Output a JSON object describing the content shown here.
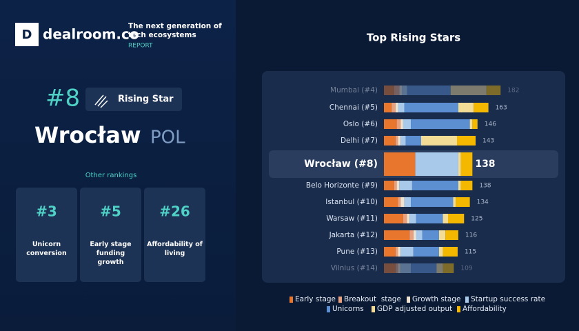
{
  "header": {
    "logo": "dealroom.co",
    "tagline": "The next generation of tech ecosystems",
    "report": "REPORT"
  },
  "profile": {
    "rank": "#8",
    "badge": "Rising Star",
    "city": "Wrocław",
    "country": "POL",
    "other_title": "Other rankings",
    "rankings": [
      {
        "rank": "#3",
        "label": "Unicorn conversion"
      },
      {
        "rank": "#5",
        "label": "Early stage funding growth"
      },
      {
        "rank": "#26",
        "label": "Affordability of living"
      }
    ]
  },
  "chart_data": {
    "type": "bar",
    "title": "Top Rising Stars",
    "categories": [
      "Mumbai (#4)",
      "Chennai (#5)",
      "Oslo (#6)",
      "Delhi (#7)",
      "Wrocław (#8)",
      "Belo Horizonte (#9)",
      "Istanbul (#10)",
      "Warsaw (#11)",
      "Jakarta (#12)",
      "Pune (#13)",
      "Vilnius (#14)"
    ],
    "totals": [
      182,
      163,
      146,
      143,
      138,
      138,
      134,
      125,
      116,
      115,
      109
    ],
    "xlim": [
      0,
      200
    ],
    "series": [
      {
        "name": "Early stage",
        "color": "#e8762d",
        "values": [
          16,
          12,
          20,
          18,
          49,
          16,
          22,
          30,
          40,
          18,
          18
        ]
      },
      {
        "name": "Breakout  stage",
        "color": "#e9a07c",
        "values": [
          8,
          6,
          6,
          4,
          0,
          4,
          4,
          6,
          6,
          4,
          4
        ]
      },
      {
        "name": "Growth stage",
        "color": "#efe3cf",
        "values": [
          4,
          4,
          4,
          4,
          0,
          4,
          6,
          4,
          4,
          4,
          4
        ]
      },
      {
        "name": "Startup success rate",
        "color": "#a9c9ea",
        "values": [
          8,
          10,
          12,
          8,
          67,
          20,
          10,
          10,
          10,
          20,
          16
        ]
      },
      {
        "name": "Unicorns",
        "color": "#5b8fd2",
        "values": [
          68,
          84,
          92,
          24,
          0,
          72,
          66,
          42,
          26,
          40,
          40
        ]
      },
      {
        "name": "GDP adjusted output",
        "color": "#f3dc95",
        "values": [
          56,
          24,
          4,
          56,
          4,
          4,
          4,
          8,
          10,
          6,
          10
        ]
      },
      {
        "name": "Affordability",
        "color": "#f5b800",
        "values": [
          22,
          23,
          8,
          29,
          18,
          18,
          22,
          25,
          20,
          23,
          17
        ]
      }
    ]
  }
}
